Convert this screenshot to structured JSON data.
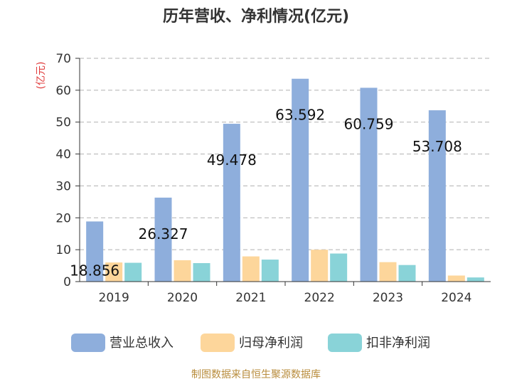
{
  "chart_data": {
    "type": "bar",
    "title": "历年营收、净利情况(亿元)",
    "ylabel": "(亿元)",
    "ylim": [
      0,
      70
    ],
    "yticks": [
      "0",
      "10",
      "20",
      "30",
      "40",
      "50",
      "60",
      "70"
    ],
    "grid": true,
    "legend_position": "bottom",
    "categories": [
      "2019",
      "2020",
      "2021",
      "2022",
      "2023",
      "2024"
    ],
    "series": [
      {
        "name": "营业总收入",
        "color": "#8eaedc",
        "values": [
          18.856,
          26.327,
          49.478,
          63.592,
          60.759,
          53.708
        ],
        "labels": [
          "18.856",
          "26.327",
          "49.478",
          "63.592",
          "60.759",
          "53.708"
        ]
      },
      {
        "name": "归母净利润",
        "color": "#fdd69b",
        "values": [
          6.0,
          6.7,
          7.9,
          10.0,
          6.1,
          1.9
        ]
      },
      {
        "name": "扣非净利润",
        "color": "#89d3d8",
        "values": [
          5.9,
          5.8,
          6.9,
          8.8,
          5.2,
          1.3
        ]
      }
    ]
  },
  "footer": {
    "source": "制图数据来自恒生聚源数据库"
  }
}
